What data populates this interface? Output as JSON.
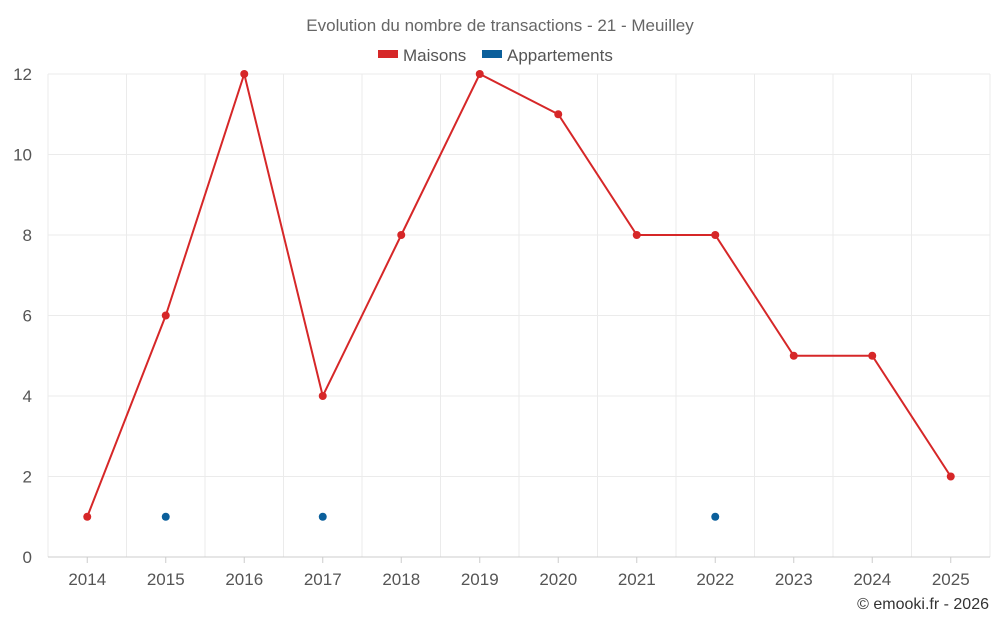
{
  "chart_data": {
    "type": "line",
    "title": "Evolution du nombre de transactions - 21 - Meuilley",
    "categories": [
      "2014",
      "2015",
      "2016",
      "2017",
      "2018",
      "2019",
      "2020",
      "2021",
      "2022",
      "2023",
      "2024",
      "2025"
    ],
    "series": [
      {
        "name": "Maisons",
        "color": "#d62728",
        "values": [
          1,
          6,
          12,
          4,
          8,
          12,
          11,
          8,
          8,
          5,
          5,
          2
        ]
      },
      {
        "name": "Appartements",
        "color": "#0b5f9b",
        "values": [
          null,
          1,
          null,
          1,
          null,
          null,
          null,
          null,
          1,
          null,
          null,
          null
        ]
      }
    ],
    "ylim": [
      0,
      12
    ],
    "yticks": [
      0,
      2,
      4,
      6,
      8,
      10,
      12
    ],
    "legend_position": "top-center",
    "grid": true,
    "xlabel": "",
    "ylabel": ""
  },
  "credit": "© emooki.fr - 2026"
}
